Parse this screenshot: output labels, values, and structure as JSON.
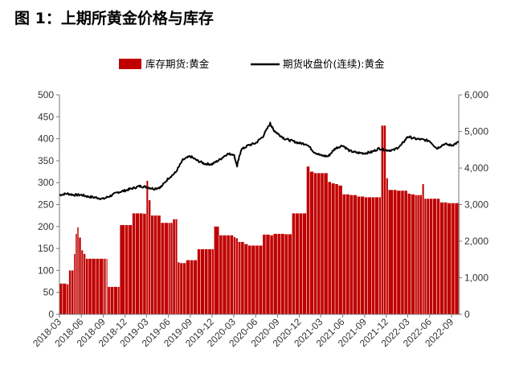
{
  "title": "图 1：上期所黄金价格与库存",
  "chart_data": {
    "type": "bar+line",
    "title": "图 1：上期所黄金价格与库存",
    "x_axis": {
      "type": "date",
      "range": [
        "2018-03",
        "2022-10"
      ],
      "tick_labels": [
        "2018-03",
        "2018-06",
        "2018-09",
        "2018-12",
        "2019-03",
        "2019-06",
        "2019-09",
        "2019-12",
        "2020-03",
        "2020-06",
        "2020-09",
        "2020-12",
        "2021-03",
        "2021-06",
        "2021-09",
        "2021-12",
        "2022-03",
        "2022-06",
        "2022-09"
      ]
    },
    "y_left": {
      "ylim": [
        0,
        500
      ],
      "ticks": [
        "0",
        "50",
        "100",
        "150",
        "200",
        "250",
        "300",
        "350",
        "400",
        "450",
        "500"
      ]
    },
    "y_right": {
      "ylim": [
        0,
        6000
      ],
      "ticks": [
        "0",
        "1,000",
        "2,000",
        "3,000",
        "4,000",
        "5,000",
        "6,000"
      ]
    },
    "legend": {
      "placement": "top"
    },
    "series": [
      {
        "name": "库存期货:黄金",
        "type": "bar",
        "axis": "right",
        "color": "#c00000",
        "points": [
          [
            "2018-03-01",
            840
          ],
          [
            "2018-03-15",
            840
          ],
          [
            "2018-04-01",
            820
          ],
          [
            "2018-04-10",
            1200
          ],
          [
            "2018-04-20",
            1200
          ],
          [
            "2018-05-01",
            1650
          ],
          [
            "2018-05-08",
            2200
          ],
          [
            "2018-05-15",
            2380
          ],
          [
            "2018-05-22",
            2100
          ],
          [
            "2018-06-01",
            1750
          ],
          [
            "2018-06-10",
            1650
          ],
          [
            "2018-06-20",
            1520
          ],
          [
            "2018-07-01",
            1520
          ],
          [
            "2018-07-15",
            1520
          ],
          [
            "2018-08-01",
            1520
          ],
          [
            "2018-08-15",
            1520
          ],
          [
            "2018-09-01",
            1520
          ],
          [
            "2018-09-10",
            1520
          ],
          [
            "2018-09-15",
            1520
          ],
          [
            "2018-09-20",
            750
          ],
          [
            "2018-10-01",
            750
          ],
          [
            "2018-10-15",
            750
          ],
          [
            "2018-11-01",
            750
          ],
          [
            "2018-11-10",
            2440
          ],
          [
            "2018-12-01",
            2440
          ],
          [
            "2018-12-15",
            2440
          ],
          [
            "2019-01-01",
            2760
          ],
          [
            "2019-01-15",
            2760
          ],
          [
            "2019-02-01",
            2760
          ],
          [
            "2019-02-15",
            2750
          ],
          [
            "2019-03-01",
            3650
          ],
          [
            "2019-03-10",
            3120
          ],
          [
            "2019-03-20",
            2700
          ],
          [
            "2019-04-01",
            2700
          ],
          [
            "2019-04-15",
            2700
          ],
          [
            "2019-05-01",
            2500
          ],
          [
            "2019-05-15",
            2500
          ],
          [
            "2019-06-01",
            2500
          ],
          [
            "2019-06-10",
            2500
          ],
          [
            "2019-06-20",
            2600
          ],
          [
            "2019-07-01",
            2600
          ],
          [
            "2019-07-10",
            1420
          ],
          [
            "2019-07-20",
            1400
          ],
          [
            "2019-08-01",
            1400
          ],
          [
            "2019-08-15",
            1480
          ],
          [
            "2019-09-01",
            1480
          ],
          [
            "2019-09-15",
            1480
          ],
          [
            "2019-10-01",
            1780
          ],
          [
            "2019-10-15",
            1780
          ],
          [
            "2019-11-01",
            1780
          ],
          [
            "2019-11-15",
            1780
          ],
          [
            "2019-12-01",
            1780
          ],
          [
            "2019-12-10",
            2400
          ],
          [
            "2020-01-01",
            2160
          ],
          [
            "2020-01-15",
            2160
          ],
          [
            "2020-02-01",
            2160
          ],
          [
            "2020-02-15",
            2160
          ],
          [
            "2020-03-01",
            2110
          ],
          [
            "2020-03-10",
            2080
          ],
          [
            "2020-03-20",
            1980
          ],
          [
            "2020-04-01",
            1980
          ],
          [
            "2020-04-15",
            1920
          ],
          [
            "2020-05-01",
            1880
          ],
          [
            "2020-05-15",
            1880
          ],
          [
            "2020-06-01",
            1880
          ],
          [
            "2020-06-15",
            1880
          ],
          [
            "2020-07-01",
            2180
          ],
          [
            "2020-07-15",
            2180
          ],
          [
            "2020-08-01",
            2160
          ],
          [
            "2020-08-15",
            2200
          ],
          [
            "2020-09-01",
            2200
          ],
          [
            "2020-09-15",
            2200
          ],
          [
            "2020-10-01",
            2190
          ],
          [
            "2020-10-15",
            2190
          ],
          [
            "2020-11-01",
            2760
          ],
          [
            "2020-11-15",
            2760
          ],
          [
            "2020-12-01",
            2760
          ],
          [
            "2020-12-15",
            2760
          ],
          [
            "2021-01-01",
            4040
          ],
          [
            "2021-01-15",
            3900
          ],
          [
            "2021-02-01",
            3860
          ],
          [
            "2021-02-15",
            3860
          ],
          [
            "2021-03-01",
            3860
          ],
          [
            "2021-03-15",
            3860
          ],
          [
            "2021-04-01",
            3620
          ],
          [
            "2021-04-15",
            3580
          ],
          [
            "2021-05-01",
            3560
          ],
          [
            "2021-05-15",
            3520
          ],
          [
            "2021-06-01",
            3280
          ],
          [
            "2021-06-15",
            3280
          ],
          [
            "2021-07-01",
            3260
          ],
          [
            "2021-07-15",
            3260
          ],
          [
            "2021-08-01",
            3220
          ],
          [
            "2021-08-15",
            3220
          ],
          [
            "2021-09-01",
            3200
          ],
          [
            "2021-09-15",
            3200
          ],
          [
            "2021-10-01",
            3200
          ],
          [
            "2021-10-15",
            3200
          ],
          [
            "2021-11-01",
            3200
          ],
          [
            "2021-11-10",
            5160
          ],
          [
            "2021-11-20",
            5160
          ],
          [
            "2021-12-01",
            3720
          ],
          [
            "2021-12-10",
            3400
          ],
          [
            "2022-01-01",
            3400
          ],
          [
            "2022-01-15",
            3380
          ],
          [
            "2022-02-01",
            3380
          ],
          [
            "2022-02-15",
            3380
          ],
          [
            "2022-03-01",
            3300
          ],
          [
            "2022-03-15",
            3280
          ],
          [
            "2022-04-01",
            3260
          ],
          [
            "2022-04-10",
            3260
          ],
          [
            "2022-04-20",
            3260
          ],
          [
            "2022-05-01",
            3560
          ],
          [
            "2022-05-10",
            3160
          ],
          [
            "2022-05-20",
            3160
          ],
          [
            "2022-06-01",
            3160
          ],
          [
            "2022-06-15",
            3160
          ],
          [
            "2022-07-01",
            3160
          ],
          [
            "2022-07-15",
            3060
          ],
          [
            "2022-08-01",
            3060
          ],
          [
            "2022-08-15",
            3040
          ],
          [
            "2022-09-01",
            3040
          ],
          [
            "2022-09-15",
            3040
          ],
          [
            "2022-10-01",
            3040
          ]
        ]
      },
      {
        "name": "期货收盘价(连续):黄金",
        "type": "line",
        "axis": "left",
        "color": "#000000",
        "points": [
          [
            "2018-03-01",
            272
          ],
          [
            "2018-04-01",
            275
          ],
          [
            "2018-05-01",
            272
          ],
          [
            "2018-06-01",
            272
          ],
          [
            "2018-07-01",
            268
          ],
          [
            "2018-08-01",
            266
          ],
          [
            "2018-09-01",
            263
          ],
          [
            "2018-10-01",
            270
          ],
          [
            "2018-11-01",
            278
          ],
          [
            "2018-12-01",
            282
          ],
          [
            "2019-01-01",
            287
          ],
          [
            "2019-02-01",
            292
          ],
          [
            "2019-03-01",
            290
          ],
          [
            "2019-04-01",
            286
          ],
          [
            "2019-05-01",
            290
          ],
          [
            "2019-06-01",
            310
          ],
          [
            "2019-07-01",
            323
          ],
          [
            "2019-08-01",
            352
          ],
          [
            "2019-09-01",
            360
          ],
          [
            "2019-10-01",
            350
          ],
          [
            "2019-11-01",
            343
          ],
          [
            "2019-12-01",
            342
          ],
          [
            "2020-01-01",
            352
          ],
          [
            "2020-02-01",
            365
          ],
          [
            "2020-03-01",
            365
          ],
          [
            "2020-03-15",
            338
          ],
          [
            "2020-04-01",
            375
          ],
          [
            "2020-05-01",
            385
          ],
          [
            "2020-06-01",
            390
          ],
          [
            "2020-07-01",
            405
          ],
          [
            "2020-08-01",
            435
          ],
          [
            "2020-08-15",
            420
          ],
          [
            "2020-09-01",
            412
          ],
          [
            "2020-10-01",
            400
          ],
          [
            "2020-11-01",
            395
          ],
          [
            "2020-12-01",
            390
          ],
          [
            "2021-01-01",
            388
          ],
          [
            "2021-02-01",
            370
          ],
          [
            "2021-03-01",
            362
          ],
          [
            "2021-04-01",
            360
          ],
          [
            "2021-05-01",
            378
          ],
          [
            "2021-06-01",
            385
          ],
          [
            "2021-07-01",
            372
          ],
          [
            "2021-08-01",
            368
          ],
          [
            "2021-09-01",
            367
          ],
          [
            "2021-10-01",
            370
          ],
          [
            "2021-11-01",
            378
          ],
          [
            "2021-12-01",
            374
          ],
          [
            "2022-01-01",
            374
          ],
          [
            "2022-02-01",
            385
          ],
          [
            "2022-03-01",
            405
          ],
          [
            "2022-04-01",
            400
          ],
          [
            "2022-05-01",
            398
          ],
          [
            "2022-06-01",
            395
          ],
          [
            "2022-07-01",
            378
          ],
          [
            "2022-08-01",
            388
          ],
          [
            "2022-09-01",
            385
          ],
          [
            "2022-10-01",
            392
          ]
        ]
      }
    ]
  }
}
